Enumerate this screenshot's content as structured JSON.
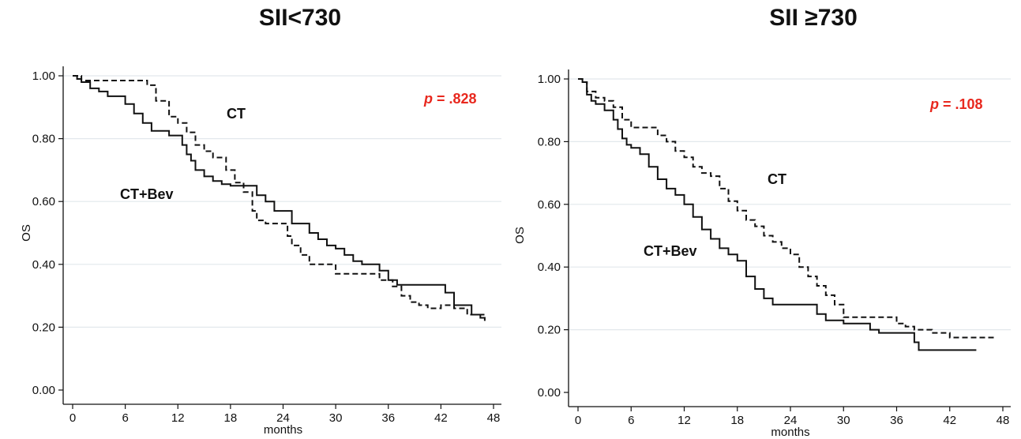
{
  "chart_data": [
    {
      "type": "line",
      "title": "SII<730",
      "xlabel": "months",
      "ylabel": "OS",
      "xlim": [
        0,
        48
      ],
      "ylim": [
        0,
        1
      ],
      "xticks": [
        "0",
        "6",
        "12",
        "18",
        "24",
        "30",
        "36",
        "42",
        "48"
      ],
      "yticks": [
        "0.00",
        "0.20",
        "0.40",
        "0.60",
        "0.80",
        "1.00"
      ],
      "grid": true,
      "annotation": {
        "prefix": "p",
        "value": " = .828",
        "color": "#e8281e"
      },
      "series_labels": {
        "ct": "CT",
        "ctbev": "CT+Bev"
      },
      "series": [
        {
          "style": "dashed",
          "x": [
            0,
            1,
            8.5,
            9.5,
            11,
            12,
            13,
            14,
            15,
            16,
            17.5,
            18.5,
            19.5,
            20.5,
            21,
            22,
            23.5,
            24.5,
            25,
            26,
            27,
            30,
            35,
            36.5,
            37.5,
            38.5,
            39.5,
            40.5,
            41.5,
            42,
            43.5,
            45,
            47
          ],
          "y": [
            1.0,
            0.985,
            0.97,
            0.92,
            0.87,
            0.85,
            0.82,
            0.78,
            0.76,
            0.74,
            0.7,
            0.66,
            0.63,
            0.57,
            0.54,
            0.53,
            0.53,
            0.49,
            0.46,
            0.43,
            0.4,
            0.37,
            0.35,
            0.33,
            0.3,
            0.28,
            0.27,
            0.26,
            0.26,
            0.27,
            0.26,
            0.24,
            0.23
          ]
        },
        {
          "style": "solid",
          "x": [
            0,
            0.5,
            1,
            2,
            3,
            4,
            6,
            7,
            8,
            9,
            11,
            12.5,
            13,
            13.5,
            14,
            15,
            16,
            17,
            18,
            21,
            22,
            23,
            25,
            27,
            28,
            29,
            30,
            31,
            32,
            33,
            35,
            36,
            37,
            42.5,
            43.5,
            45.5,
            46.5,
            47
          ],
          "y": [
            1.0,
            0.99,
            0.98,
            0.96,
            0.95,
            0.935,
            0.91,
            0.88,
            0.85,
            0.825,
            0.81,
            0.78,
            0.75,
            0.73,
            0.7,
            0.68,
            0.665,
            0.655,
            0.65,
            0.62,
            0.6,
            0.57,
            0.53,
            0.5,
            0.48,
            0.46,
            0.45,
            0.43,
            0.41,
            0.4,
            0.38,
            0.35,
            0.335,
            0.31,
            0.27,
            0.24,
            0.23,
            0.22
          ]
        }
      ]
    },
    {
      "type": "line",
      "title": "SII ≥730",
      "xlabel": "months",
      "ylabel": "OS",
      "xlim": [
        0,
        48
      ],
      "ylim": [
        0,
        1
      ],
      "xticks": [
        "0",
        "6",
        "12",
        "18",
        "24",
        "30",
        "36",
        "42",
        "48"
      ],
      "yticks": [
        "0.00",
        "0.20",
        "0.40",
        "0.60",
        "0.80",
        "1.00"
      ],
      "grid": true,
      "annotation": {
        "prefix": "p",
        "value": " = .108",
        "color": "#e8281e"
      },
      "series_labels": {
        "ct": "CT",
        "ctbev": "CT+Bev"
      },
      "series": [
        {
          "style": "dashed",
          "x": [
            0,
            0.5,
            1,
            2,
            3,
            4,
            5,
            6,
            9,
            10,
            11,
            12,
            13,
            14,
            15,
            16,
            17,
            18,
            19,
            20,
            21,
            22,
            23,
            24,
            25,
            26,
            27,
            28,
            29,
            30,
            33,
            36,
            37,
            38,
            39,
            40,
            42,
            47
          ],
          "y": [
            1.0,
            0.99,
            0.96,
            0.94,
            0.93,
            0.91,
            0.87,
            0.845,
            0.82,
            0.8,
            0.77,
            0.75,
            0.72,
            0.7,
            0.69,
            0.65,
            0.61,
            0.58,
            0.55,
            0.53,
            0.5,
            0.48,
            0.46,
            0.44,
            0.4,
            0.37,
            0.34,
            0.31,
            0.28,
            0.24,
            0.24,
            0.22,
            0.21,
            0.2,
            0.2,
            0.19,
            0.175,
            0.175
          ]
        },
        {
          "style": "solid",
          "x": [
            0,
            0.5,
            1,
            1.5,
            2,
            3,
            4,
            4.5,
            5,
            5.5,
            6,
            7,
            8,
            9,
            10,
            11,
            12,
            13,
            14,
            15,
            16,
            17,
            18,
            19,
            20,
            21,
            22,
            24,
            26,
            27,
            28,
            30,
            31,
            33,
            34,
            38,
            38.5,
            45
          ],
          "y": [
            1.0,
            0.99,
            0.95,
            0.93,
            0.92,
            0.9,
            0.87,
            0.84,
            0.81,
            0.79,
            0.78,
            0.76,
            0.72,
            0.68,
            0.65,
            0.63,
            0.6,
            0.56,
            0.52,
            0.49,
            0.46,
            0.44,
            0.42,
            0.37,
            0.33,
            0.3,
            0.28,
            0.28,
            0.28,
            0.25,
            0.23,
            0.22,
            0.22,
            0.2,
            0.19,
            0.16,
            0.135,
            0.135
          ]
        }
      ]
    }
  ]
}
